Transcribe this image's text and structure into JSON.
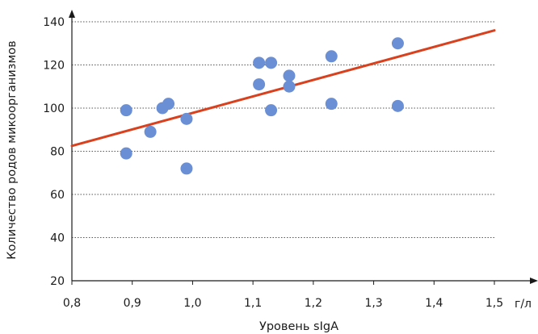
{
  "chart_data": {
    "type": "scatter",
    "title": "",
    "xlabel": "Уровень sIgA",
    "ylabel": "Количество родов микоорганизмов",
    "x_unit": "г/л",
    "xlim": [
      0.8,
      1.5
    ],
    "ylim": [
      20,
      140
    ],
    "x_ticks": [
      "0,8",
      "0,9",
      "1,0",
      "1,1",
      "1,2",
      "1,3",
      "1,4",
      "1,5"
    ],
    "y_ticks": [
      "20",
      "40",
      "60",
      "80",
      "100",
      "120",
      "140"
    ],
    "grid": {
      "horizontal": true,
      "style": "dotted"
    },
    "point_color": "#6a8fd4",
    "trendline_color": "#d9411e",
    "series": [
      {
        "points": [
          {
            "x": 0.89,
            "y": 99
          },
          {
            "x": 0.89,
            "y": 79
          },
          {
            "x": 0.93,
            "y": 89
          },
          {
            "x": 0.95,
            "y": 100
          },
          {
            "x": 0.96,
            "y": 102
          },
          {
            "x": 0.99,
            "y": 95
          },
          {
            "x": 0.99,
            "y": 72
          },
          {
            "x": 1.11,
            "y": 121
          },
          {
            "x": 1.13,
            "y": 121
          },
          {
            "x": 1.11,
            "y": 111
          },
          {
            "x": 1.16,
            "y": 115
          },
          {
            "x": 1.16,
            "y": 110
          },
          {
            "x": 1.13,
            "y": 99
          },
          {
            "x": 1.23,
            "y": 124
          },
          {
            "x": 1.23,
            "y": 102
          },
          {
            "x": 1.34,
            "y": 130
          },
          {
            "x": 1.34,
            "y": 101
          }
        ]
      }
    ],
    "trendline": {
      "x": [
        0.8,
        1.5
      ],
      "y": [
        82.5,
        136
      ]
    }
  }
}
